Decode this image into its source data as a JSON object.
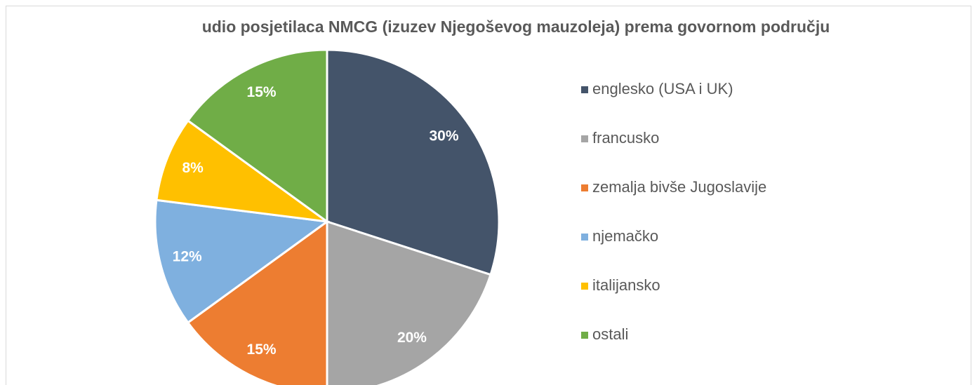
{
  "chart_data": {
    "type": "pie",
    "title": "udio posjetilaca NMCG (izuzev Njegoševog mauzoleja) prema govornom području",
    "categories": [
      "englesko (USA i UK)",
      "francusko",
      "zemalja bivše Jugoslavije",
      "njemačko",
      "italijansko",
      "ostali"
    ],
    "values": [
      30,
      20,
      15,
      12,
      8,
      15
    ],
    "value_labels": [
      "30%",
      "20%",
      "15%",
      "12%",
      "8%",
      "15%"
    ],
    "colors": [
      "#44546a",
      "#a5a5a5",
      "#ed7d31",
      "#7fb0df",
      "#ffc000",
      "#70ad47"
    ],
    "legend": "right"
  }
}
